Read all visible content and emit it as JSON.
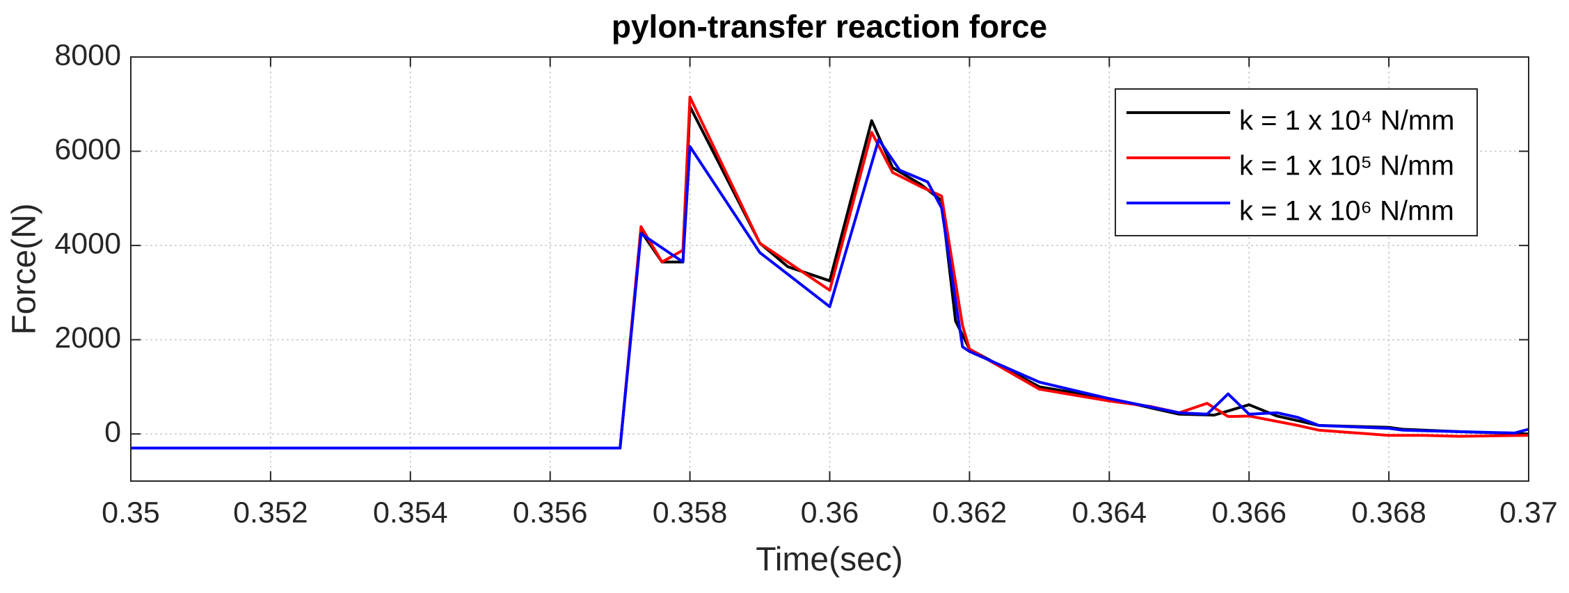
{
  "chart_data": {
    "type": "line",
    "title": "pylon-transfer reaction force",
    "xlabel": "Time(sec)",
    "ylabel": "Force(N)",
    "xlim": [
      0.35,
      0.37
    ],
    "xticks": [
      0.35,
      0.352,
      0.354,
      0.356,
      0.358,
      0.36,
      0.362,
      0.364,
      0.366,
      0.368,
      0.37
    ],
    "ylim": [
      -1000,
      8000
    ],
    "yticks": [
      0,
      2000,
      4000,
      6000,
      8000
    ],
    "grid": true,
    "legend": "upper right",
    "series": [
      {
        "name": "k = 1 x 10⁴ N/mm",
        "color": "#000000",
        "x": [
          0.35,
          0.357,
          0.3573,
          0.3576,
          0.3579,
          0.358,
          0.359,
          0.3594,
          0.36,
          0.3606,
          0.3609,
          0.3613,
          0.3616,
          0.3618,
          0.362,
          0.363,
          0.364,
          0.365,
          0.3655,
          0.366,
          0.3664,
          0.367,
          0.368,
          0.3682,
          0.369,
          0.37
        ],
        "values": [
          -300,
          -300,
          4300,
          3650,
          3650,
          6950,
          4050,
          3550,
          3250,
          6650,
          5650,
          5300,
          4950,
          2400,
          1800,
          1000,
          750,
          420,
          400,
          620,
          380,
          180,
          140,
          100,
          50,
          0
        ]
      },
      {
        "name": "k = 1 x 10⁵ N/mm",
        "color": "#ff0000",
        "x": [
          0.35,
          0.357,
          0.3573,
          0.3576,
          0.3579,
          0.358,
          0.359,
          0.36,
          0.3606,
          0.3609,
          0.3613,
          0.3616,
          0.3619,
          0.362,
          0.363,
          0.364,
          0.3646,
          0.365,
          0.3654,
          0.3657,
          0.366,
          0.3667,
          0.367,
          0.368,
          0.3685,
          0.369,
          0.37
        ],
        "values": [
          -300,
          -300,
          4400,
          3650,
          3900,
          7150,
          4050,
          3050,
          6400,
          5550,
          5250,
          5050,
          2300,
          1800,
          950,
          700,
          580,
          450,
          650,
          370,
          380,
          180,
          80,
          -30,
          -30,
          -50,
          -30
        ]
      },
      {
        "name": "k = 1 x 10⁶ N/mm",
        "color": "#0000ff",
        "x": [
          0.35,
          0.357,
          0.3573,
          0.3577,
          0.3579,
          0.358,
          0.359,
          0.36,
          0.3607,
          0.361,
          0.3614,
          0.3616,
          0.3619,
          0.362,
          0.363,
          0.364,
          0.365,
          0.3654,
          0.3657,
          0.366,
          0.3664,
          0.3667,
          0.367,
          0.368,
          0.3682,
          0.3698,
          0.37
        ],
        "values": [
          -300,
          -300,
          4250,
          3850,
          3650,
          6100,
          3850,
          2700,
          6250,
          5600,
          5350,
          4800,
          1850,
          1750,
          1100,
          750,
          450,
          420,
          850,
          420,
          450,
          350,
          180,
          120,
          80,
          20,
          100
        ]
      }
    ]
  }
}
